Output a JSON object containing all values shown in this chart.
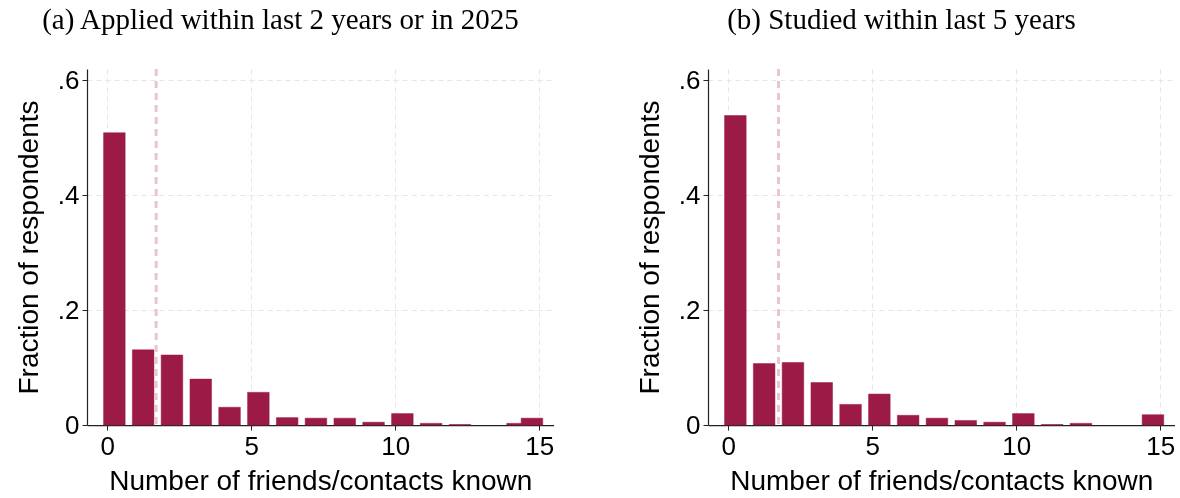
{
  "chart_data": [
    {
      "type": "bar",
      "title": "(a) Applied within last 2 years or in 2025",
      "xlabel": "Number of friends/contacts known",
      "ylabel": "Fraction of respondents",
      "x": [
        0.25,
        1.25,
        2.25,
        3.25,
        4.25,
        5.25,
        6.25,
        7.25,
        8.25,
        9.25,
        10.25,
        11.25,
        12.25,
        14.25,
        14.75
      ],
      "values": [
        0.509,
        0.131,
        0.122,
        0.08,
        0.031,
        0.057,
        0.013,
        0.012,
        0.012,
        0.005,
        0.02,
        0.003,
        0.001,
        0.003,
        0.012
      ],
      "color": "#9c1a46",
      "xlim": [
        -0.7,
        15.5
      ],
      "ylim": [
        0,
        0.62
      ],
      "xticks": [
        0,
        5,
        10,
        15
      ],
      "yticks": [
        0,
        {
          "value": 0.2,
          "label": ".2"
        },
        {
          "value": 0.4,
          "label": ".4"
        },
        {
          "value": 0.6,
          "label": ".6"
        }
      ],
      "grid": true,
      "ref_lines": [
        {
          "axis": "x",
          "value": 1.7,
          "color": "#e8c5d3",
          "line_style": "dashed"
        }
      ]
    },
    {
      "type": "bar",
      "title": "(b) Studied within last 5 years",
      "xlabel": "Number of friends/contacts known",
      "ylabel": "Fraction of respondents",
      "x": [
        0.25,
        1.25,
        2.25,
        3.25,
        4.25,
        5.25,
        6.25,
        7.25,
        8.25,
        9.25,
        10.25,
        11.25,
        12.25,
        14.75
      ],
      "values": [
        0.539,
        0.107,
        0.109,
        0.074,
        0.036,
        0.054,
        0.017,
        0.012,
        0.008,
        0.005,
        0.02,
        0.001,
        0.003,
        0.018
      ],
      "color": "#9c1a46",
      "xlim": [
        -0.7,
        15.5
      ],
      "ylim": [
        0,
        0.62
      ],
      "xticks": [
        0,
        5,
        10,
        15
      ],
      "yticks": [
        0,
        {
          "value": 0.2,
          "label": ".2"
        },
        {
          "value": 0.4,
          "label": ".4"
        },
        {
          "value": 0.6,
          "label": ".6"
        }
      ],
      "grid": true,
      "ref_lines": [
        {
          "axis": "x",
          "value": 1.75,
          "color": "#e8c5d3",
          "line_style": "dashed"
        }
      ]
    }
  ]
}
